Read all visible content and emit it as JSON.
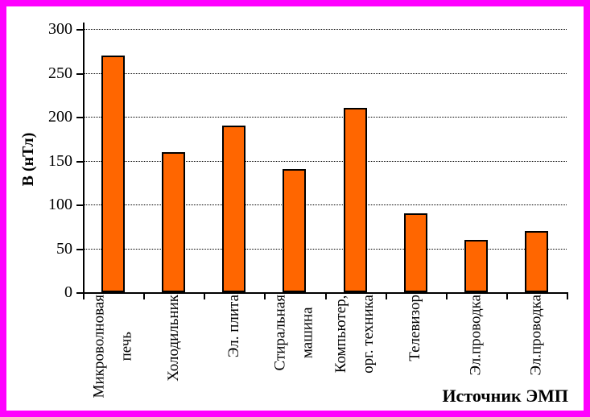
{
  "window": {
    "frame_color": "#ff00ff",
    "background_color": "#ffffff"
  },
  "chart_data": {
    "type": "bar",
    "title": "",
    "xlabel": "Источник ЭМП",
    "ylabel": "В (нТл)",
    "categories": [
      "Микроволновая\nпечь",
      "Холодильник",
      "Эл. плита",
      "Стиральная\nмашина",
      "Компьютер,\nорг. техника",
      "Телевизор",
      "Эл.проводка",
      "Эл.проводка"
    ],
    "values": [
      270,
      160,
      190,
      140,
      210,
      90,
      60,
      70
    ],
    "ylim": [
      0,
      300
    ],
    "yticks": [
      0,
      50,
      100,
      150,
      200,
      250,
      300
    ],
    "grid": "horizontal-dotted",
    "legend": "none",
    "bar_color": "#ff6600",
    "bar_border_color": "#000000"
  }
}
